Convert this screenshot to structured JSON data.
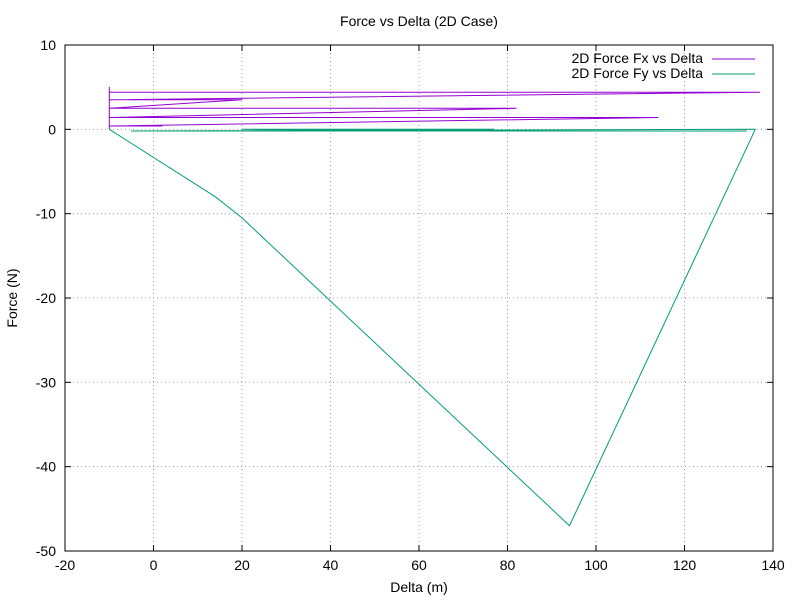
{
  "chart_data": {
    "type": "line",
    "title": "Force vs Delta (2D Case)",
    "xlabel": "Delta (m)",
    "ylabel": "Force (N)",
    "xlim": [
      -20,
      140
    ],
    "ylim": [
      -50,
      10
    ],
    "xticks": [
      -20,
      0,
      20,
      40,
      60,
      80,
      100,
      120,
      140
    ],
    "yticks": [
      -50,
      -40,
      -30,
      -20,
      -10,
      0,
      10
    ],
    "grid": true,
    "legend_position": "top-right",
    "series": [
      {
        "name": "2D Force Fx vs Delta",
        "color": "#9400d3",
        "points": [
          [
            -10,
            0
          ],
          [
            -10,
            5
          ],
          [
            -10,
            4.4
          ],
          [
            137,
            4.4
          ],
          [
            -10,
            3.5
          ],
          [
            20,
            3.5
          ],
          [
            -10,
            2.5
          ],
          [
            82,
            2.5
          ],
          [
            -10,
            1.4
          ],
          [
            114,
            1.4
          ],
          [
            -10,
            0.4
          ],
          [
            2,
            0.4
          ]
        ]
      },
      {
        "name": "2D Force Fy vs Delta",
        "color": "#009e73",
        "points": [
          [
            -10,
            0
          ],
          [
            14,
            -8
          ],
          [
            20,
            -10.5
          ],
          [
            94,
            -47
          ],
          [
            136,
            0
          ],
          [
            -5,
            -0.2
          ],
          [
            134,
            -0.2
          ],
          [
            17,
            -0.2
          ],
          [
            84,
            -0.2
          ],
          [
            20,
            0
          ],
          [
            77,
            0
          ]
        ]
      }
    ]
  }
}
